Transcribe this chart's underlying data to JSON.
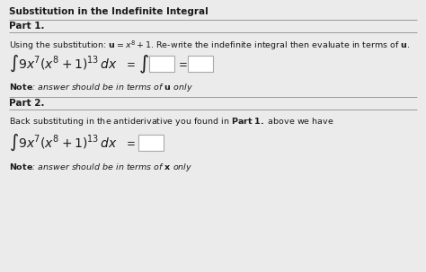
{
  "title": "Substitution in the Indefinite Integral",
  "part1_label": "Part 1.",
  "part2_label": "Part 2.",
  "bg_color": "#ebebeb",
  "white": "#ffffff",
  "line_color": "#999999",
  "text_color": "#1a1a1a",
  "box_edge": "#aaaaaa"
}
